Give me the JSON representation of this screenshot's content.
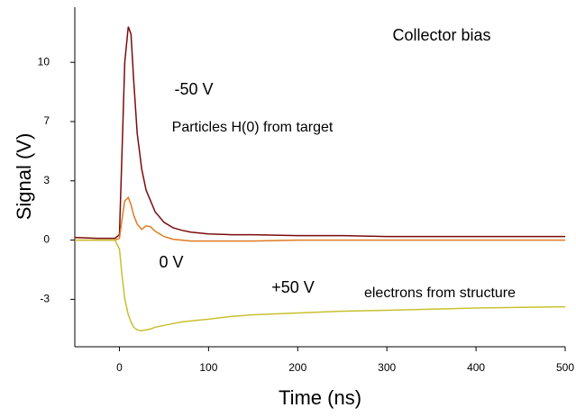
{
  "chart_data": {
    "type": "line",
    "x_label": "Time (ns)",
    "y_label": "Signal (V)",
    "annotations": [
      "Collector bias",
      "-50 V",
      "Particles H(0) from target",
      "0 V",
      "+50 V",
      "electrons from structure"
    ],
    "x": [
      -50,
      -25,
      -5,
      0,
      3,
      6,
      10,
      13,
      16,
      20,
      25,
      30,
      35,
      40,
      50,
      60,
      70,
      80,
      100,
      125,
      150,
      200,
      250,
      300,
      350,
      400,
      450,
      500
    ],
    "series": [
      {
        "color": "#7a0c0c",
        "values": [
          0.15,
          0.1,
          0.1,
          0.3,
          5,
          10,
          12.0,
          11.6,
          9,
          6,
          4,
          2.8,
          2.2,
          1.6,
          1.0,
          0.7,
          0.55,
          0.45,
          0.35,
          0.3,
          0.3,
          0.25,
          0.25,
          0.2,
          0.2,
          0.2,
          0.2,
          0.2
        ]
      },
      {
        "color": "#e07b20",
        "values": [
          0,
          0,
          0,
          0.1,
          1.2,
          2.2,
          2.4,
          2.0,
          1.4,
          0.9,
          0.6,
          0.8,
          0.75,
          0.5,
          0.2,
          0.05,
          0,
          -0.05,
          -0.05,
          -0.05,
          -0.05,
          0,
          0,
          0,
          0,
          0,
          0,
          0
        ]
      },
      {
        "color": "#c8c030",
        "values": [
          0,
          0,
          0,
          -0.5,
          -2,
          -3.3,
          -4.2,
          -4.6,
          -4.9,
          -5.05,
          -5.1,
          -5.05,
          -5.0,
          -4.9,
          -4.8,
          -4.7,
          -4.6,
          -4.55,
          -4.45,
          -4.3,
          -4.2,
          -4.1,
          -4.0,
          -3.95,
          -3.88,
          -3.82,
          -3.78,
          -3.75
        ]
      }
    ],
    "xlim": [
      -50,
      500
    ],
    "xticks": [
      0,
      100,
      200,
      300,
      400,
      500
    ],
    "ylim": [
      -6,
      13.1
    ],
    "yticks": [
      {
        "value": -3.333,
        "label": "-3"
      },
      0,
      {
        "value": 3.333,
        "label": "3"
      },
      {
        "value": 6.667,
        "label": "7"
      },
      10
    ]
  }
}
